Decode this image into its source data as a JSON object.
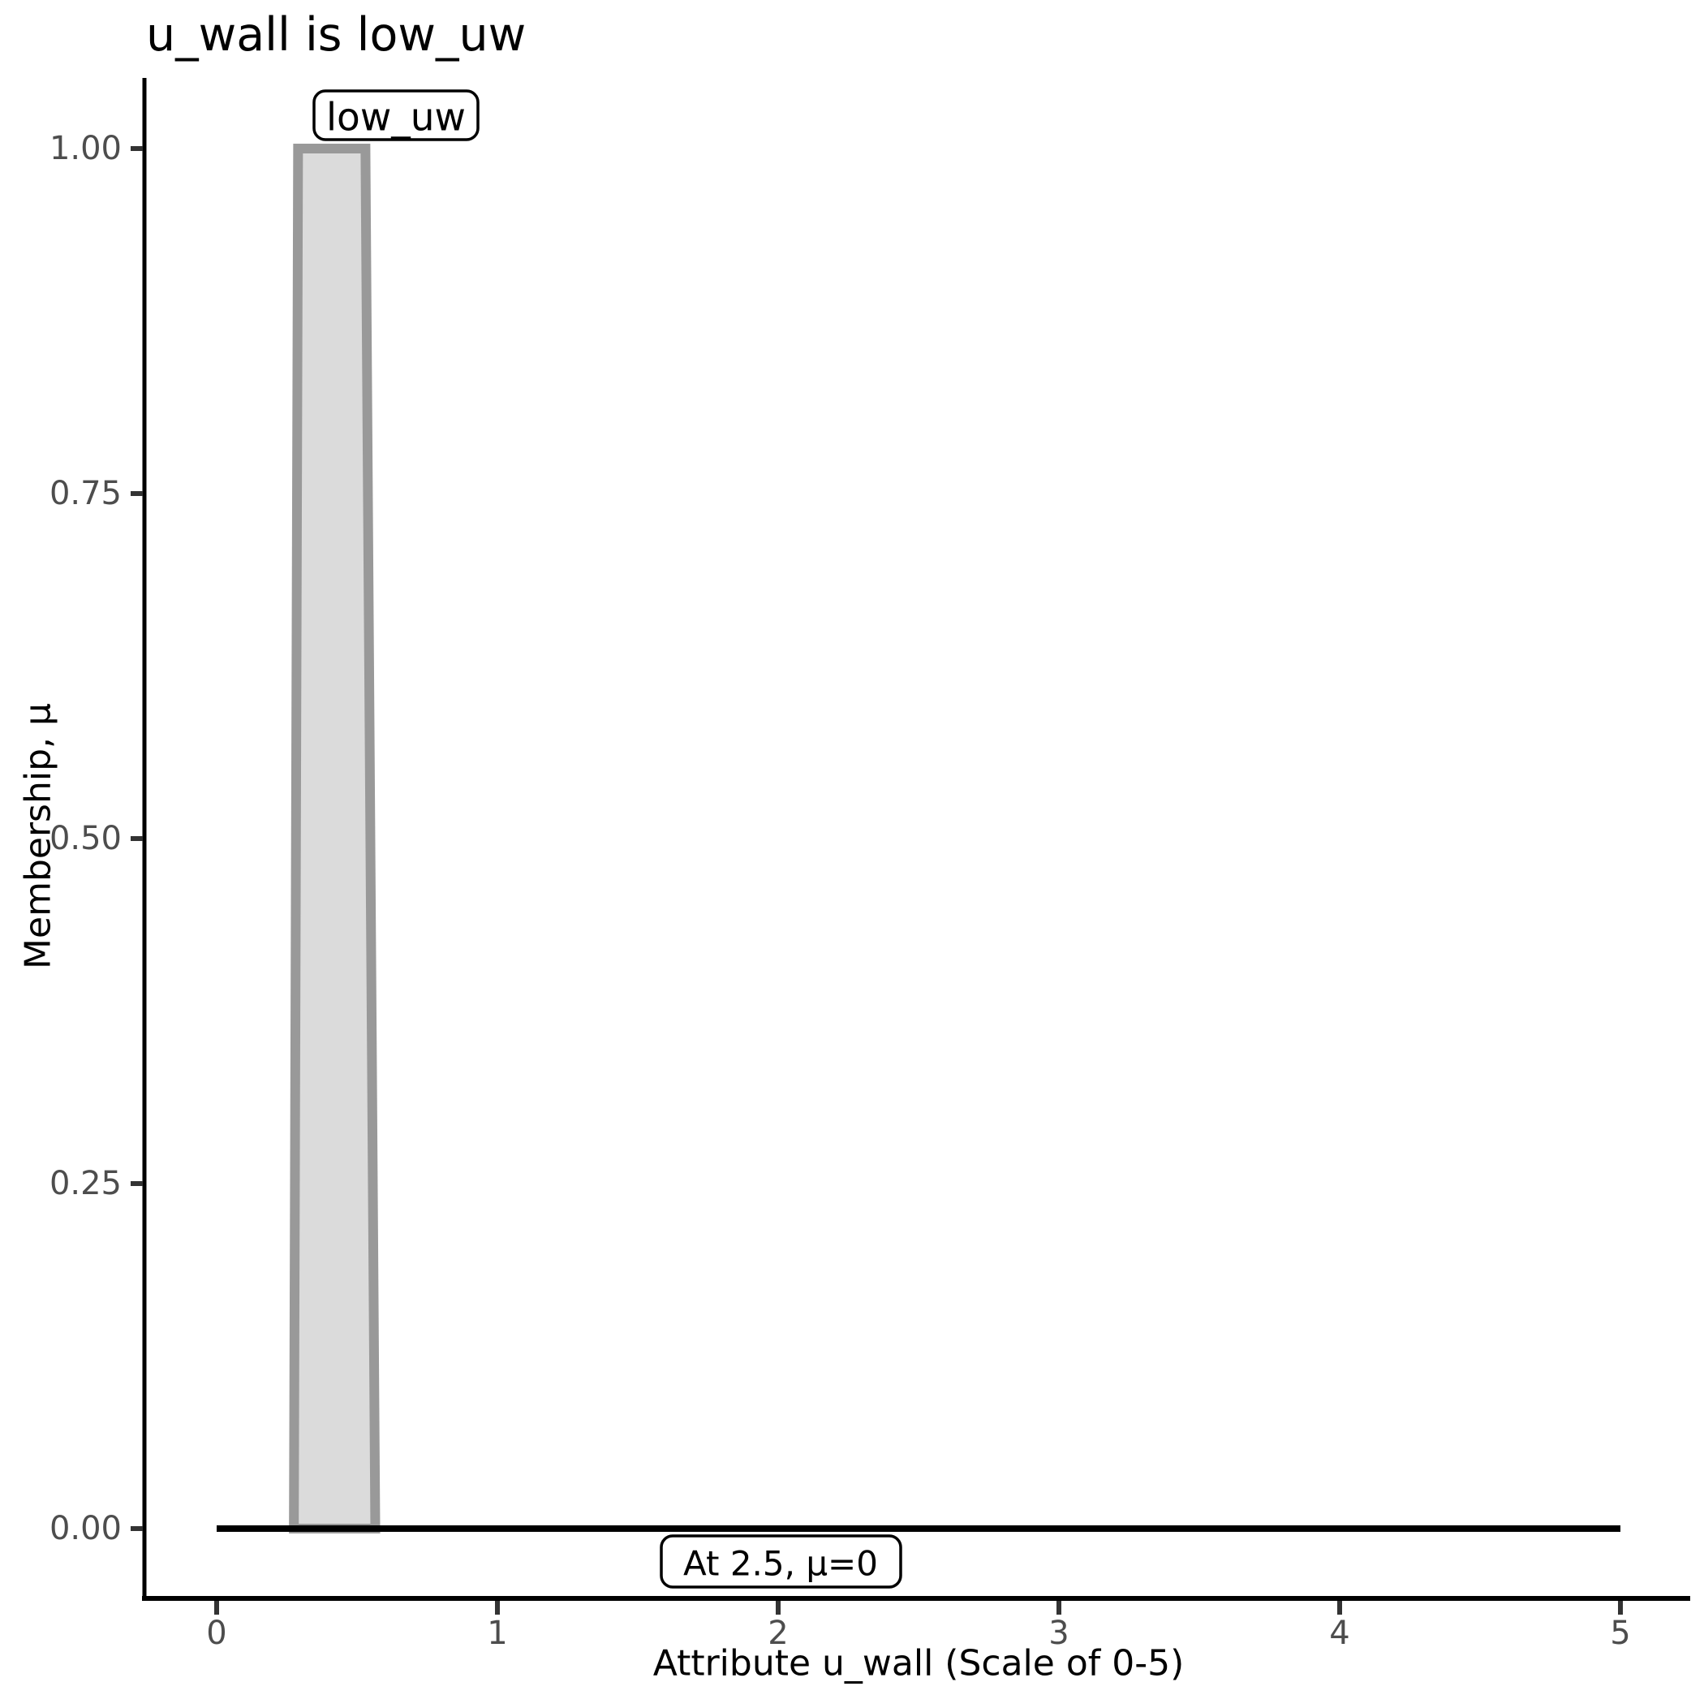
{
  "title": "u_wall is low_uw",
  "chart_data": {
    "type": "area",
    "title": "u_wall is low_uw",
    "xlabel": "Attribute u_wall (Scale of 0-5)",
    "ylabel": "Membership, μ",
    "xlim": [
      0,
      5
    ],
    "ylim": [
      0,
      1
    ],
    "grid": "off",
    "x_ticks": [
      {
        "value": 0,
        "label": "0"
      },
      {
        "value": 1,
        "label": "1"
      },
      {
        "value": 2,
        "label": "2"
      },
      {
        "value": 3,
        "label": "3"
      },
      {
        "value": 4,
        "label": "4"
      },
      {
        "value": 5,
        "label": "5"
      }
    ],
    "y_ticks": [
      {
        "value": 0.0,
        "label": "0.00"
      },
      {
        "value": 0.25,
        "label": "0.25"
      },
      {
        "value": 0.5,
        "label": "0.50"
      },
      {
        "value": 0.75,
        "label": "0.75"
      },
      {
        "value": 1.0,
        "label": "1.00"
      }
    ],
    "series": [
      {
        "name": "low_uw membership polygon",
        "type": "polygon",
        "x": [
          0.275,
          0.29,
          0.53,
          0.565
        ],
        "mu": [
          0,
          1,
          1,
          0
        ]
      },
      {
        "name": "membership baseline (mu = 0)",
        "type": "line",
        "x": [
          0,
          5
        ],
        "mu": [
          0,
          0
        ]
      }
    ],
    "annotations": [
      {
        "label": "low_uw",
        "x": 0.35,
        "mu": 1.0
      },
      {
        "label": "At 2.5, μ=0",
        "x": 2.0,
        "mu": 0
      }
    ]
  },
  "colors": {
    "background": "#ffffff",
    "polygon_fill": "#dbdbdb",
    "polygon_stroke": "#999999",
    "baseline": "#000000",
    "axis_line": "#000000",
    "tick_mark": "#333333",
    "tick_text": "#4d4d4d",
    "label_text": "#000000",
    "annotation_border": "#000000",
    "annotation_fill": "#ffffff"
  }
}
